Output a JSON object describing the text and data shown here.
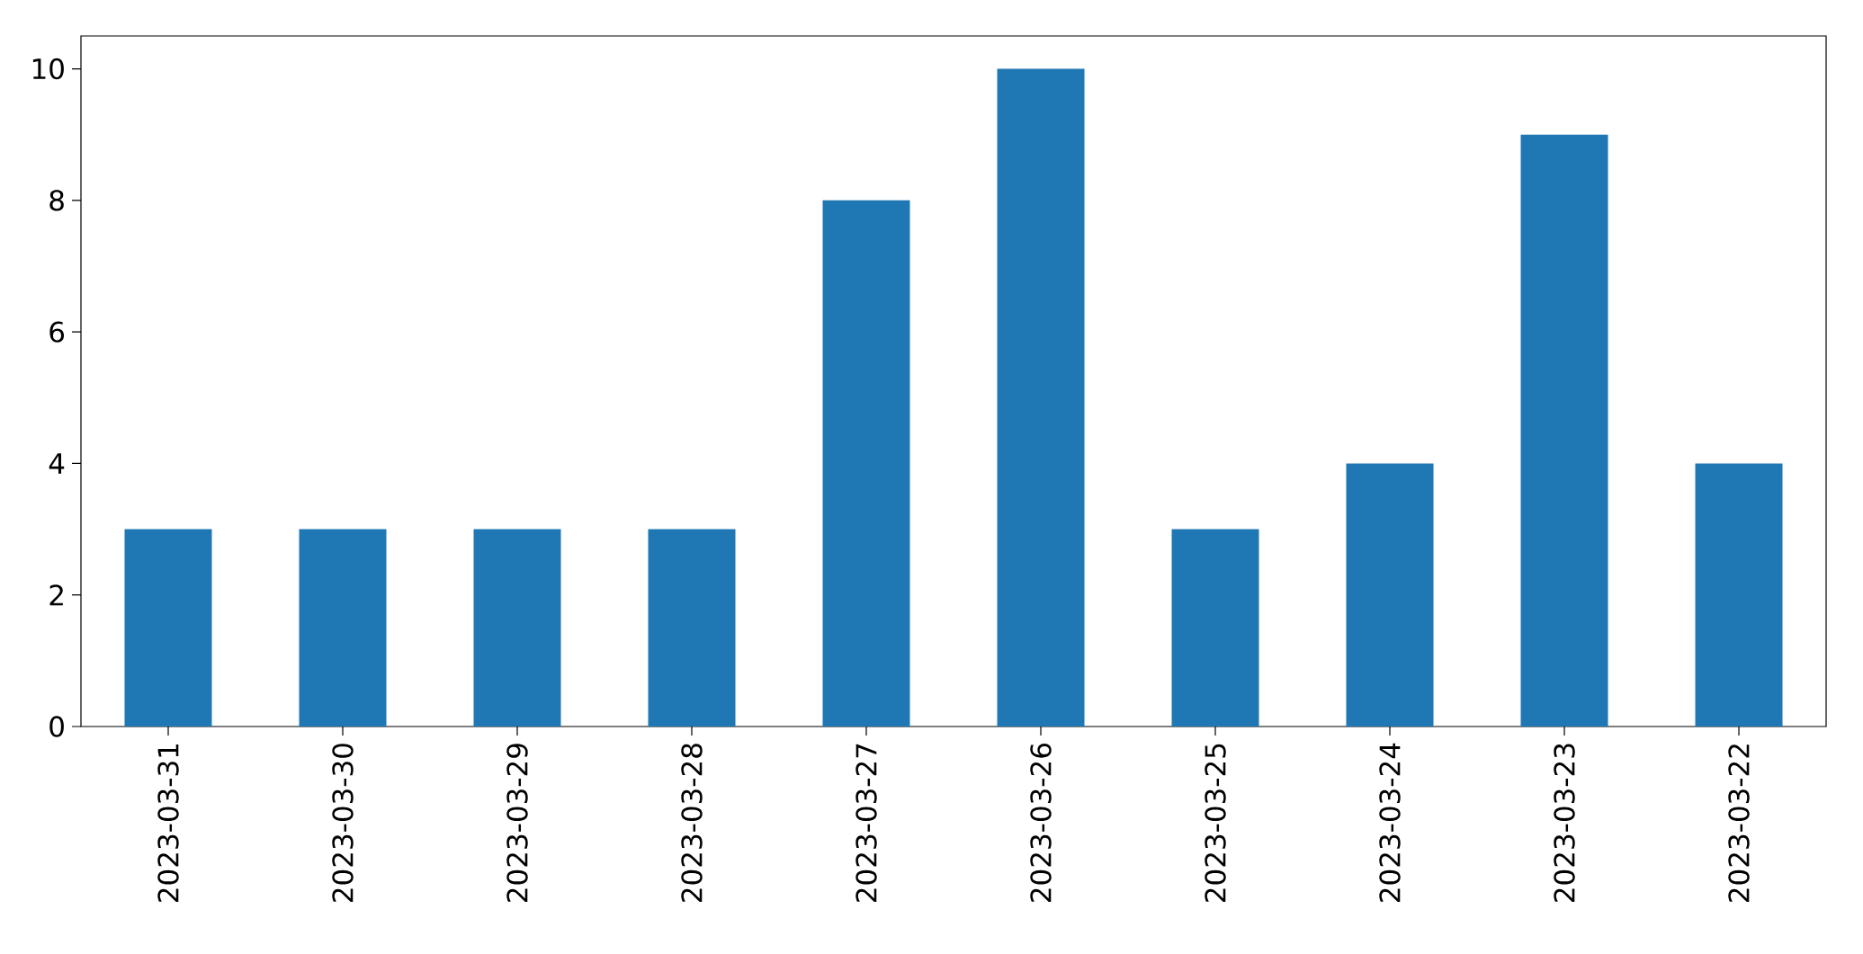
{
  "chart_data": {
    "type": "bar",
    "categories": [
      "2023-03-31",
      "2023-03-30",
      "2023-03-29",
      "2023-03-28",
      "2023-03-27",
      "2023-03-26",
      "2023-03-25",
      "2023-03-24",
      "2023-03-23",
      "2023-03-22"
    ],
    "values": [
      3,
      3,
      3,
      3,
      8,
      10,
      3,
      4,
      9,
      4
    ],
    "color": "#1f77b4",
    "ylim": [
      0,
      10.5
    ],
    "yticks": [
      0,
      2,
      4,
      6,
      8,
      10
    ]
  }
}
